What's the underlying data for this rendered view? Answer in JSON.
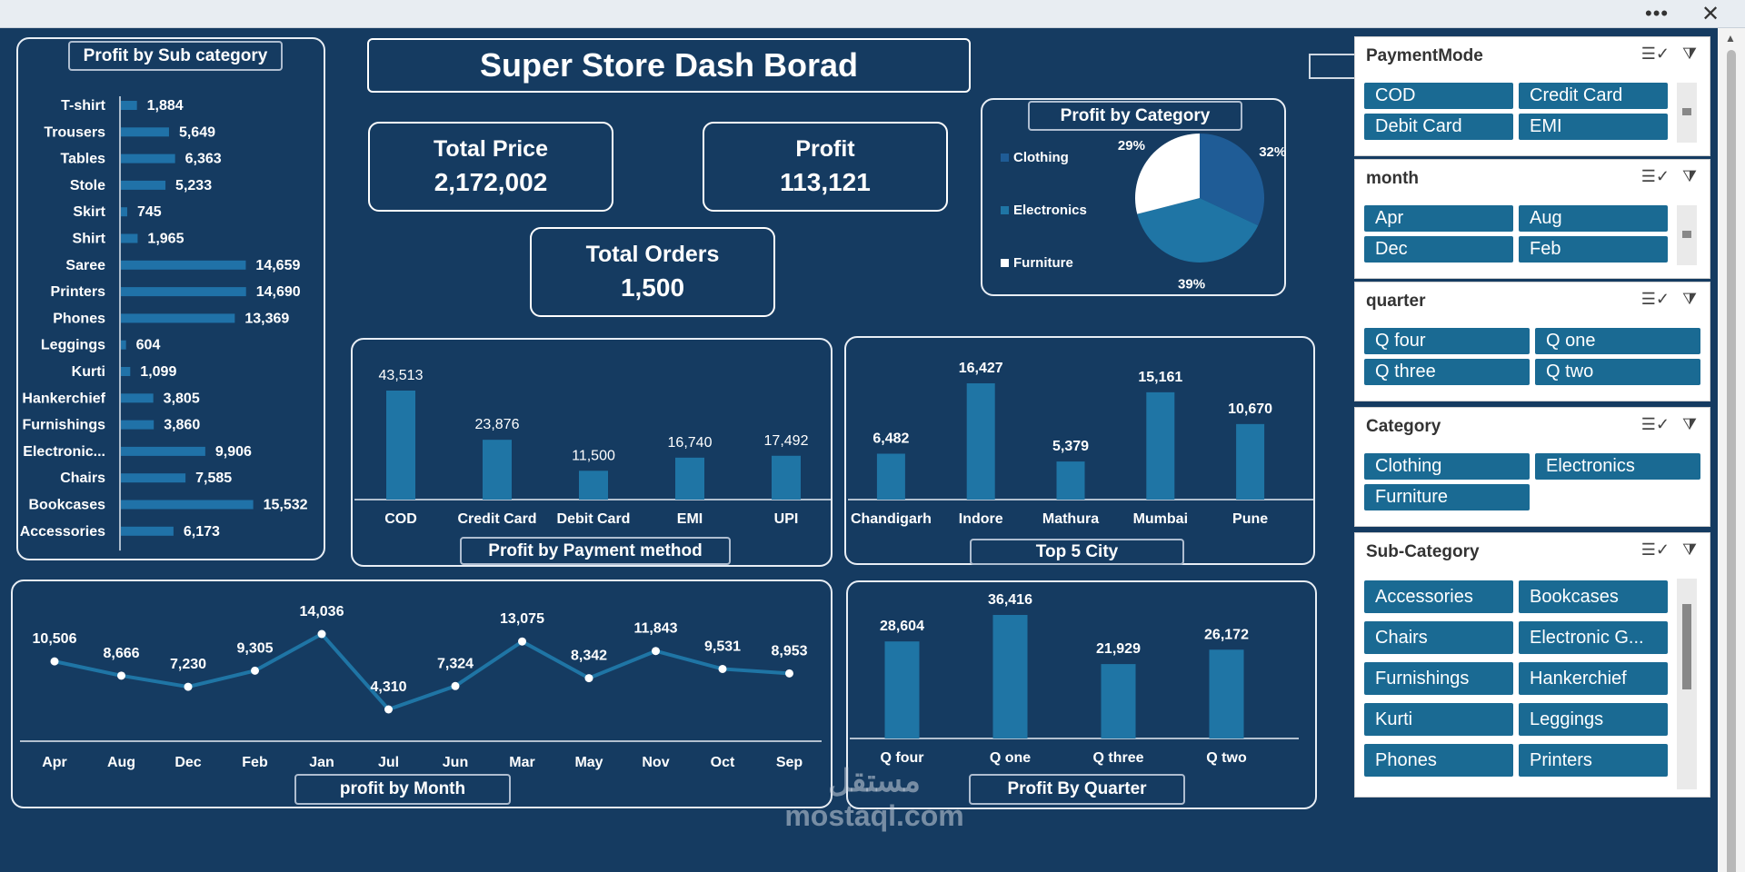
{
  "window": {
    "more_label": "•••",
    "close_label": "✕"
  },
  "dashboard": {
    "title": "Super Store Dash Borad",
    "kpis": {
      "total_price_label": "Total Price",
      "total_price_value": "2,172,002",
      "profit_label": "Profit",
      "profit_value": "113,121",
      "orders_label": "Total Orders",
      "orders_value": "1,500"
    }
  },
  "subcat_chart": {
    "title": "Profit by Sub category",
    "chart_data": {
      "type": "bar",
      "orientation": "horizontal",
      "title": "Profit by Sub category",
      "categories": [
        "T-shirt",
        "Trousers",
        "Tables",
        "Stole",
        "Skirt",
        "Shirt",
        "Saree",
        "Printers",
        "Phones",
        "Leggings",
        "Kurti",
        "Hankerchief",
        "Furnishings",
        "Electronic...",
        "Chairs",
        "Bookcases",
        "Accessories"
      ],
      "values": [
        1884,
        5649,
        6363,
        5233,
        745,
        1965,
        14659,
        14690,
        13369,
        604,
        1099,
        3805,
        3860,
        9906,
        7585,
        15532,
        6173
      ],
      "labels": [
        "1,884",
        "5,649",
        "6,363",
        "5,233",
        "745",
        "1,965",
        "14,659",
        "14,690",
        "13,369",
        "604",
        "1,099",
        "3,805",
        "3,860",
        "9,906",
        "7,585",
        "15,532",
        "6,173"
      ],
      "color": "#2072a8"
    }
  },
  "category_chart": {
    "title": "Profit by Category",
    "chart_data": {
      "type": "pie",
      "title": "Profit by Category",
      "categories": [
        "Clothing",
        "Electronics",
        "Furniture"
      ],
      "values": [
        32,
        39,
        29
      ],
      "labels": [
        "32%",
        "39%",
        "29%"
      ],
      "colors": [
        "#1f5c96",
        "#1f75a5",
        "#ffffff"
      ],
      "legend": "left"
    }
  },
  "payment_chart": {
    "title": "Profit by Payment method",
    "chart_data": {
      "type": "bar",
      "title": "Profit by Payment method",
      "categories": [
        "COD",
        "Credit Card",
        "Debit Card",
        "EMI",
        "UPI"
      ],
      "values": [
        43513,
        23876,
        11500,
        16740,
        17492
      ],
      "labels": [
        "43,513",
        "23,876",
        "11,500",
        "16,740",
        "17,492"
      ],
      "color": "#1f75a5"
    }
  },
  "city_chart": {
    "title": "Top 5 City",
    "chart_data": {
      "type": "bar",
      "title": "Top 5 City",
      "categories": [
        "Chandigarh",
        "Indore",
        "Mathura",
        "Mumbai",
        "Pune"
      ],
      "values": [
        6482,
        16427,
        5379,
        15161,
        10670
      ],
      "labels": [
        "6,482",
        "16,427",
        "5,379",
        "15,161",
        "10,670"
      ],
      "color": "#1f75a5"
    }
  },
  "month_chart": {
    "title": "profit by Month",
    "chart_data": {
      "type": "line",
      "title": "profit by Month",
      "categories": [
        "Apr",
        "Aug",
        "Dec",
        "Feb",
        "Jan",
        "Jul",
        "Jun",
        "Mar",
        "May",
        "Nov",
        "Oct",
        "Sep"
      ],
      "values": [
        10506,
        8666,
        7230,
        9305,
        14036,
        4310,
        7324,
        13075,
        8342,
        11843,
        9531,
        8953
      ],
      "labels": [
        "10,506",
        "8,666",
        "7,230",
        "9,305",
        "14,036",
        "4,310",
        "7,324",
        "13,075",
        "8,342",
        "11,843",
        "9,531",
        "8,953"
      ],
      "color": "#1f75a5"
    }
  },
  "quarter_chart": {
    "title": "Profit By Quarter",
    "chart_data": {
      "type": "bar",
      "title": "Profit By Quarter",
      "categories": [
        "Q four",
        "Q one",
        "Q three",
        "Q two"
      ],
      "values": [
        28604,
        36416,
        21929,
        26172
      ],
      "labels": [
        "28,604",
        "36,416",
        "21,929",
        "26,172"
      ],
      "color": "#1f75a5"
    }
  },
  "slicers": {
    "payment": {
      "title": "PaymentMode",
      "items": [
        "COD",
        "Credit Card",
        "Debit Card",
        "EMI"
      ]
    },
    "month": {
      "title": "month",
      "items": [
        "Apr",
        "Aug",
        "Dec",
        "Feb"
      ]
    },
    "quarter": {
      "title": "quarter",
      "items": [
        "Q four",
        "Q one",
        "Q three",
        "Q two"
      ]
    },
    "category": {
      "title": "Category",
      "items": [
        "Clothing",
        "Electronics",
        "Furniture"
      ]
    },
    "subcategory": {
      "title": "Sub-Category",
      "items": [
        "Accessories",
        "Bookcases",
        "Chairs",
        "Electronic G...",
        "Furnishings",
        "Hankerchief",
        "Kurti",
        "Leggings",
        "Phones",
        "Printers"
      ]
    },
    "multiselect_icon": "multi-select-icon",
    "clear_filter_icon": "clear-filter-icon"
  },
  "watermark": {
    "text_ar": "مستقل",
    "text": "mostaql.com"
  }
}
